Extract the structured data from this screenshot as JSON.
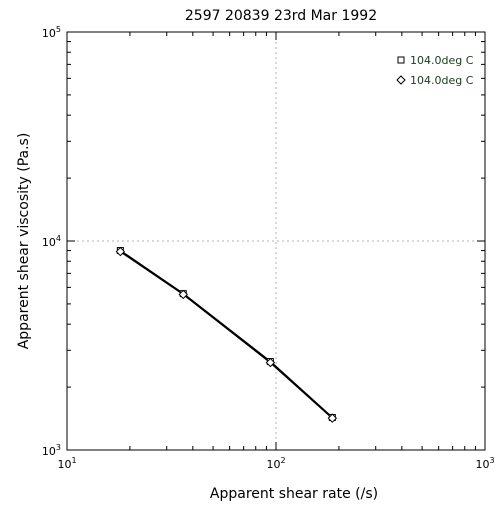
{
  "chart_data": {
    "type": "line",
    "title": "2597   20839   23rd Mar 1992",
    "xlabel": "Apparent shear rate (/s)",
    "ylabel": "Apparent shear viscosity (Pa.s)",
    "xscale": "log",
    "yscale": "log",
    "xlim": [
      10,
      1000
    ],
    "ylim": [
      1000,
      100000
    ],
    "xticks": [
      {
        "base": "10",
        "exp": "1"
      },
      {
        "base": "10",
        "exp": "2"
      },
      {
        "base": "10",
        "exp": "3"
      }
    ],
    "yticks": [
      {
        "base": "10",
        "exp": "3"
      },
      {
        "base": "10",
        "exp": "4"
      },
      {
        "base": "10",
        "exp": "5"
      }
    ],
    "grid": "dotted lines at major decades",
    "legend_position": "top-right",
    "series": [
      {
        "name": "104.0deg C",
        "marker": "square",
        "x": [
          18,
          36,
          94,
          186
        ],
        "y": [
          9000,
          5600,
          2650,
          1430
        ]
      },
      {
        "name": "104.0deg C",
        "marker": "diamond",
        "x": [
          18,
          36,
          94,
          186
        ],
        "y": [
          8900,
          5550,
          2620,
          1420
        ]
      }
    ]
  }
}
